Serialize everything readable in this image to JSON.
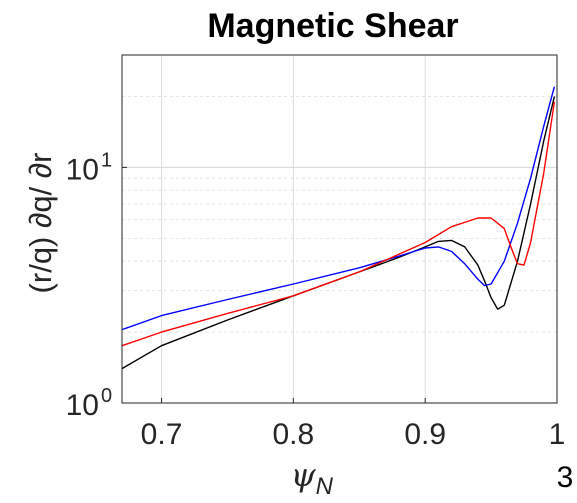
{
  "page_number": "3",
  "chart_data": {
    "type": "line",
    "title": "Magnetic Shear",
    "ylabel": "(r/q)  ∂q/ ∂r",
    "xlabel": "ψ",
    "xlabel_sub": "N",
    "xlim": [
      0.67,
      1.0
    ],
    "ylim": [
      1.0,
      30.0
    ],
    "yscale": "log",
    "grid": true,
    "x_ticks": [
      {
        "value": 0.7,
        "label": "0.7"
      },
      {
        "value": 0.8,
        "label": "0.8"
      },
      {
        "value": 0.9,
        "label": "0.9"
      },
      {
        "value": 1.0,
        "label": "1"
      }
    ],
    "y_ticks": [
      {
        "value": 1,
        "base": "10",
        "exp": "0"
      },
      {
        "value": 10,
        "base": "10",
        "exp": "1"
      }
    ],
    "series": [
      {
        "color": "#000000",
        "x": [
          0.67,
          0.7,
          0.75,
          0.8,
          0.85,
          0.88,
          0.9,
          0.91,
          0.92,
          0.93,
          0.94,
          0.945,
          0.95,
          0.955,
          0.96,
          0.97,
          0.98,
          0.99,
          0.998
        ],
        "y": [
          1.4,
          1.75,
          2.25,
          2.85,
          3.6,
          4.15,
          4.6,
          4.85,
          4.9,
          4.6,
          3.85,
          3.3,
          2.8,
          2.5,
          2.6,
          4.0,
          7.0,
          13.0,
          20.0
        ]
      },
      {
        "color": "#0000ff",
        "x": [
          0.67,
          0.7,
          0.75,
          0.8,
          0.85,
          0.88,
          0.9,
          0.91,
          0.92,
          0.93,
          0.94,
          0.945,
          0.95,
          0.96,
          0.97,
          0.98,
          0.99,
          0.998
        ],
        "y": [
          2.05,
          2.35,
          2.75,
          3.2,
          3.75,
          4.2,
          4.55,
          4.6,
          4.4,
          3.9,
          3.35,
          3.15,
          3.2,
          4.0,
          5.8,
          9.0,
          15.0,
          22.0
        ]
      },
      {
        "color": "#ff0000",
        "x": [
          0.67,
          0.7,
          0.75,
          0.8,
          0.85,
          0.9,
          0.92,
          0.94,
          0.95,
          0.96,
          0.965,
          0.97,
          0.975,
          0.98,
          0.99,
          0.998
        ],
        "y": [
          1.75,
          2.0,
          2.4,
          2.85,
          3.6,
          4.8,
          5.6,
          6.1,
          6.1,
          5.5,
          4.6,
          3.9,
          3.85,
          4.8,
          9.5,
          19.0
        ]
      }
    ]
  }
}
